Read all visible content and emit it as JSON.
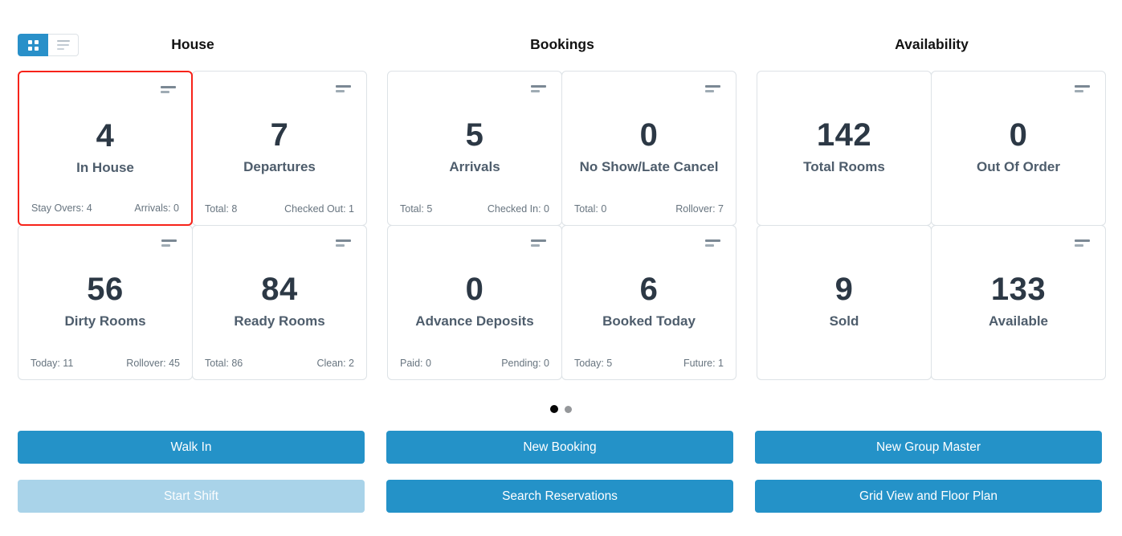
{
  "view_toggle": {
    "grid_icon": "grid-view-icon",
    "list_icon": "list-view-icon",
    "active": "grid",
    "active_color": "#2990c9"
  },
  "sections": {
    "house": {
      "title": "House",
      "cards": {
        "in_house": {
          "value": "4",
          "label": "In House",
          "footer_left": "Stay Overs: 4",
          "footer_right": "Arrivals: 0",
          "highlighted": true
        },
        "departures": {
          "value": "7",
          "label": "Departures",
          "footer_left": "Total: 8",
          "footer_right": "Checked Out: 1"
        },
        "dirty_rooms": {
          "value": "56",
          "label": "Dirty Rooms",
          "footer_left": "Today: 11",
          "footer_right": "Rollover: 45"
        },
        "ready_rooms": {
          "value": "84",
          "label": "Ready Rooms",
          "footer_left": "Total: 86",
          "footer_right": "Clean: 2"
        }
      }
    },
    "bookings": {
      "title": "Bookings",
      "cards": {
        "arrivals": {
          "value": "5",
          "label": "Arrivals",
          "footer_left": "Total: 5",
          "footer_right": "Checked In: 0"
        },
        "no_show": {
          "value": "0",
          "label": "No Show/Late Cancel",
          "footer_left": "Total: 0",
          "footer_right": "Rollover: 7"
        },
        "advance_deposits": {
          "value": "0",
          "label": "Advance Deposits",
          "footer_left": "Paid: 0",
          "footer_right": "Pending: 0"
        },
        "booked_today": {
          "value": "6",
          "label": "Booked Today",
          "footer_left": "Today: 5",
          "footer_right": "Future: 1"
        }
      }
    },
    "availability": {
      "title": "Availability",
      "cards": {
        "total_rooms": {
          "value": "142",
          "label": "Total Rooms"
        },
        "out_of_order": {
          "value": "0",
          "label": "Out Of Order"
        },
        "sold": {
          "value": "9",
          "label": "Sold"
        },
        "available": {
          "value": "133",
          "label": "Available"
        }
      }
    }
  },
  "pagination": {
    "dot_count": 2,
    "active_index": 0
  },
  "actions": {
    "walk_in": {
      "label": "Walk In"
    },
    "new_booking": {
      "label": "New Booking"
    },
    "new_group_master": {
      "label": "New Group Master"
    },
    "start_shift": {
      "label": "Start Shift",
      "disabled": true
    },
    "search_reservations": {
      "label": "Search Reservations"
    },
    "grid_view_floor_plan": {
      "label": "Grid View and Floor Plan"
    }
  },
  "colors": {
    "accent": "#2492c8",
    "accent_disabled": "#a9d3e9",
    "highlight_border": "#f7231a",
    "card_border": "#dde2e6",
    "value_text": "#2c3845",
    "label_text": "#4e5d6c",
    "footer_text": "#67747f"
  }
}
